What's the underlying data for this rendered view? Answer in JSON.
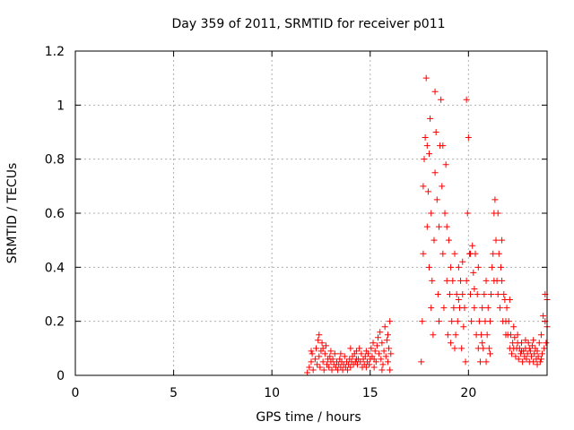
{
  "chart_data": {
    "type": "scatter",
    "title": "Day 359 of 2011, SRMTID for receiver p011",
    "xlabel": "GPS time / hours",
    "ylabel": "SRMTID / TECUs",
    "xlim": [
      0,
      24
    ],
    "ylim": [
      0,
      1.2
    ],
    "x_ticks": [
      0,
      5,
      10,
      15,
      20
    ],
    "x_tick_labels": [
      "0",
      "5",
      "10",
      "15",
      "20"
    ],
    "y_ticks": [
      0,
      0.2,
      0.4,
      0.6,
      0.8,
      1,
      1.2
    ],
    "y_tick_labels": [
      "0",
      "0.2",
      "0.4",
      "0.6",
      "0.8",
      "1",
      "1.2"
    ],
    "grid": true,
    "marker": "+",
    "series": [
      {
        "name": "SRMTID",
        "color": "#ff0000",
        "points": [
          [
            11.8,
            0.01
          ],
          [
            11.9,
            0.03
          ],
          [
            12.0,
            0.05
          ],
          [
            12.05,
            0.08
          ],
          [
            12.1,
            0.02
          ],
          [
            12.2,
            0.06
          ],
          [
            12.25,
            0.1
          ],
          [
            12.3,
            0.04
          ],
          [
            12.35,
            0.13
          ],
          [
            12.4,
            0.07
          ],
          [
            12.45,
            0.03
          ],
          [
            12.5,
            0.09
          ],
          [
            12.55,
            0.12
          ],
          [
            12.6,
            0.05
          ],
          [
            12.65,
            0.02
          ],
          [
            12.7,
            0.08
          ],
          [
            12.75,
            0.11
          ],
          [
            12.8,
            0.04
          ],
          [
            12.85,
            0.06
          ],
          [
            12.9,
            0.03
          ],
          [
            12.95,
            0.07
          ],
          [
            13.0,
            0.05
          ],
          [
            13.05,
            0.02
          ],
          [
            13.1,
            0.06
          ],
          [
            13.15,
            0.04
          ],
          [
            13.2,
            0.08
          ],
          [
            13.25,
            0.03
          ],
          [
            13.3,
            0.05
          ],
          [
            13.35,
            0.02
          ],
          [
            13.4,
            0.04
          ],
          [
            13.45,
            0.06
          ],
          [
            13.5,
            0.03
          ],
          [
            13.55,
            0.05
          ],
          [
            13.6,
            0.02
          ],
          [
            13.65,
            0.04
          ],
          [
            13.7,
            0.07
          ],
          [
            13.75,
            0.03
          ],
          [
            13.8,
            0.05
          ],
          [
            13.85,
            0.02
          ],
          [
            13.9,
            0.04
          ],
          [
            13.95,
            0.06
          ],
          [
            14.0,
            0.03
          ],
          [
            14.05,
            0.05
          ],
          [
            14.1,
            0.07
          ],
          [
            14.15,
            0.04
          ],
          [
            14.2,
            0.08
          ],
          [
            14.25,
            0.05
          ],
          [
            14.3,
            0.09
          ],
          [
            14.35,
            0.04
          ],
          [
            14.4,
            0.06
          ],
          [
            14.45,
            0.1
          ],
          [
            14.5,
            0.05
          ],
          [
            14.55,
            0.08
          ],
          [
            14.6,
            0.03
          ],
          [
            14.65,
            0.06
          ],
          [
            14.7,
            0.04
          ],
          [
            14.75,
            0.07
          ],
          [
            14.8,
            0.03
          ],
          [
            14.85,
            0.05
          ],
          [
            14.9,
            0.08
          ],
          [
            14.95,
            0.04
          ],
          [
            15.0,
            0.06
          ],
          [
            15.05,
            0.1
          ],
          [
            15.1,
            0.07
          ],
          [
            15.15,
            0.12
          ],
          [
            15.2,
            0.06
          ],
          [
            15.25,
            0.09
          ],
          [
            15.3,
            0.05
          ],
          [
            15.35,
            0.11
          ],
          [
            15.4,
            0.14
          ],
          [
            15.45,
            0.08
          ],
          [
            15.5,
            0.16
          ],
          [
            15.55,
            0.06
          ],
          [
            15.6,
            0.12
          ],
          [
            15.65,
            0.04
          ],
          [
            15.7,
            0.09
          ],
          [
            15.75,
            0.18
          ],
          [
            15.8,
            0.07
          ],
          [
            15.85,
            0.13
          ],
          [
            15.9,
            0.05
          ],
          [
            15.95,
            0.1
          ],
          [
            16.0,
            0.2
          ],
          [
            16.05,
            0.08
          ],
          [
            12.0,
            0.09
          ],
          [
            12.4,
            0.15
          ],
          [
            12.6,
            0.1
          ],
          [
            13.0,
            0.09
          ],
          [
            13.5,
            0.08
          ],
          [
            14.0,
            0.1
          ],
          [
            14.3,
            0.06
          ],
          [
            14.8,
            0.09
          ],
          [
            15.2,
            0.03
          ],
          [
            15.6,
            0.02
          ],
          [
            15.9,
            0.15
          ],
          [
            16.0,
            0.02
          ],
          [
            17.6,
            0.05
          ],
          [
            17.65,
            0.2
          ],
          [
            17.7,
            0.45
          ],
          [
            17.75,
            0.8
          ],
          [
            17.8,
            0.88
          ],
          [
            17.85,
            1.1
          ],
          [
            17.9,
            0.85
          ],
          [
            17.95,
            0.68
          ],
          [
            18.0,
            0.4
          ],
          [
            18.05,
            0.95
          ],
          [
            18.1,
            0.6
          ],
          [
            18.15,
            0.35
          ],
          [
            18.2,
            0.15
          ],
          [
            18.25,
            0.5
          ],
          [
            18.3,
            1.05
          ],
          [
            18.35,
            0.9
          ],
          [
            18.4,
            0.65
          ],
          [
            18.45,
            0.3
          ],
          [
            18.5,
            0.55
          ],
          [
            18.55,
            0.85
          ],
          [
            18.6,
            1.02
          ],
          [
            18.65,
            0.7
          ],
          [
            18.7,
            0.45
          ],
          [
            18.75,
            0.25
          ],
          [
            18.8,
            0.6
          ],
          [
            18.85,
            0.78
          ],
          [
            18.9,
            0.35
          ],
          [
            18.95,
            0.15
          ],
          [
            19.0,
            0.5
          ],
          [
            19.05,
            0.3
          ],
          [
            19.1,
            0.4
          ],
          [
            19.15,
            0.2
          ],
          [
            19.2,
            0.35
          ],
          [
            19.25,
            0.25
          ],
          [
            19.3,
            0.45
          ],
          [
            19.35,
            0.15
          ],
          [
            19.4,
            0.3
          ],
          [
            19.45,
            0.2
          ],
          [
            19.5,
            0.4
          ],
          [
            19.55,
            0.25
          ],
          [
            19.6,
            0.35
          ],
          [
            19.65,
            0.1
          ],
          [
            19.7,
            0.3
          ],
          [
            19.75,
            0.18
          ],
          [
            19.8,
            0.25
          ],
          [
            19.85,
            0.05
          ],
          [
            19.9,
            1.02
          ],
          [
            19.95,
            0.6
          ],
          [
            20.0,
            0.88
          ],
          [
            20.05,
            0.45
          ],
          [
            20.1,
            0.3
          ],
          [
            20.15,
            0.2
          ],
          [
            20.2,
            0.48
          ],
          [
            20.25,
            0.38
          ],
          [
            20.3,
            0.25
          ],
          [
            20.35,
            0.45
          ],
          [
            20.4,
            0.15
          ],
          [
            20.45,
            0.3
          ],
          [
            20.5,
            0.1
          ],
          [
            20.55,
            0.2
          ],
          [
            20.6,
            0.05
          ],
          [
            20.65,
            0.15
          ],
          [
            20.7,
            0.25
          ],
          [
            20.75,
            0.1
          ],
          [
            20.8,
            0.3
          ],
          [
            20.85,
            0.2
          ],
          [
            20.9,
            0.35
          ],
          [
            20.95,
            0.15
          ],
          [
            21.0,
            0.25
          ],
          [
            21.05,
            0.1
          ],
          [
            21.1,
            0.2
          ],
          [
            21.15,
            0.3
          ],
          [
            21.2,
            0.4
          ],
          [
            21.25,
            0.45
          ],
          [
            21.3,
            0.6
          ],
          [
            21.35,
            0.65
          ],
          [
            21.4,
            0.5
          ],
          [
            21.45,
            0.35
          ],
          [
            21.5,
            0.3
          ],
          [
            21.55,
            0.45
          ],
          [
            21.6,
            0.25
          ],
          [
            21.65,
            0.4
          ],
          [
            21.7,
            0.35
          ],
          [
            21.75,
            0.2
          ],
          [
            21.8,
            0.3
          ],
          [
            21.85,
            0.28
          ],
          [
            21.9,
            0.2
          ],
          [
            21.95,
            0.25
          ],
          [
            22.0,
            0.15
          ],
          [
            22.05,
            0.2
          ],
          [
            22.1,
            0.1
          ],
          [
            22.15,
            0.15
          ],
          [
            22.2,
            0.08
          ],
          [
            22.25,
            0.12
          ],
          [
            22.3,
            0.1
          ],
          [
            22.35,
            0.14
          ],
          [
            22.4,
            0.07
          ],
          [
            22.45,
            0.1
          ],
          [
            22.5,
            0.12
          ],
          [
            22.55,
            0.06
          ],
          [
            22.6,
            0.1
          ],
          [
            22.65,
            0.08
          ],
          [
            22.7,
            0.12
          ],
          [
            22.75,
            0.05
          ],
          [
            22.8,
            0.09
          ],
          [
            22.85,
            0.07
          ],
          [
            22.9,
            0.1
          ],
          [
            22.95,
            0.06
          ],
          [
            23.0,
            0.08
          ],
          [
            23.05,
            0.12
          ],
          [
            23.1,
            0.05
          ],
          [
            23.15,
            0.09
          ],
          [
            23.2,
            0.07
          ],
          [
            23.25,
            0.11
          ],
          [
            23.3,
            0.05
          ],
          [
            23.35,
            0.08
          ],
          [
            23.4,
            0.1
          ],
          [
            23.45,
            0.06
          ],
          [
            23.5,
            0.09
          ],
          [
            23.55,
            0.07
          ],
          [
            23.6,
            0.12
          ],
          [
            23.65,
            0.05
          ],
          [
            23.7,
            0.15
          ],
          [
            23.75,
            0.08
          ],
          [
            23.8,
            0.22
          ],
          [
            23.85,
            0.1
          ],
          [
            23.9,
            0.3
          ],
          [
            23.95,
            0.12
          ],
          [
            24.0,
            0.18
          ],
          [
            17.7,
            0.7
          ],
          [
            17.9,
            0.55
          ],
          [
            18.0,
            0.82
          ],
          [
            18.1,
            0.25
          ],
          [
            18.3,
            0.75
          ],
          [
            18.5,
            0.2
          ],
          [
            18.7,
            0.85
          ],
          [
            18.9,
            0.55
          ],
          [
            19.1,
            0.12
          ],
          [
            19.3,
            0.1
          ],
          [
            19.5,
            0.28
          ],
          [
            19.7,
            0.42
          ],
          [
            19.9,
            0.35
          ],
          [
            20.1,
            0.45
          ],
          [
            20.3,
            0.32
          ],
          [
            20.5,
            0.4
          ],
          [
            20.7,
            0.12
          ],
          [
            20.9,
            0.05
          ],
          [
            21.1,
            0.08
          ],
          [
            21.3,
            0.35
          ],
          [
            21.5,
            0.6
          ],
          [
            21.7,
            0.5
          ],
          [
            21.9,
            0.15
          ],
          [
            22.1,
            0.28
          ],
          [
            22.3,
            0.18
          ],
          [
            22.5,
            0.15
          ],
          [
            22.7,
            0.09
          ],
          [
            22.9,
            0.13
          ],
          [
            23.1,
            0.1
          ],
          [
            23.3,
            0.13
          ],
          [
            23.5,
            0.04
          ],
          [
            23.7,
            0.06
          ],
          [
            23.9,
            0.2
          ],
          [
            24.0,
            0.28
          ]
        ]
      }
    ]
  }
}
